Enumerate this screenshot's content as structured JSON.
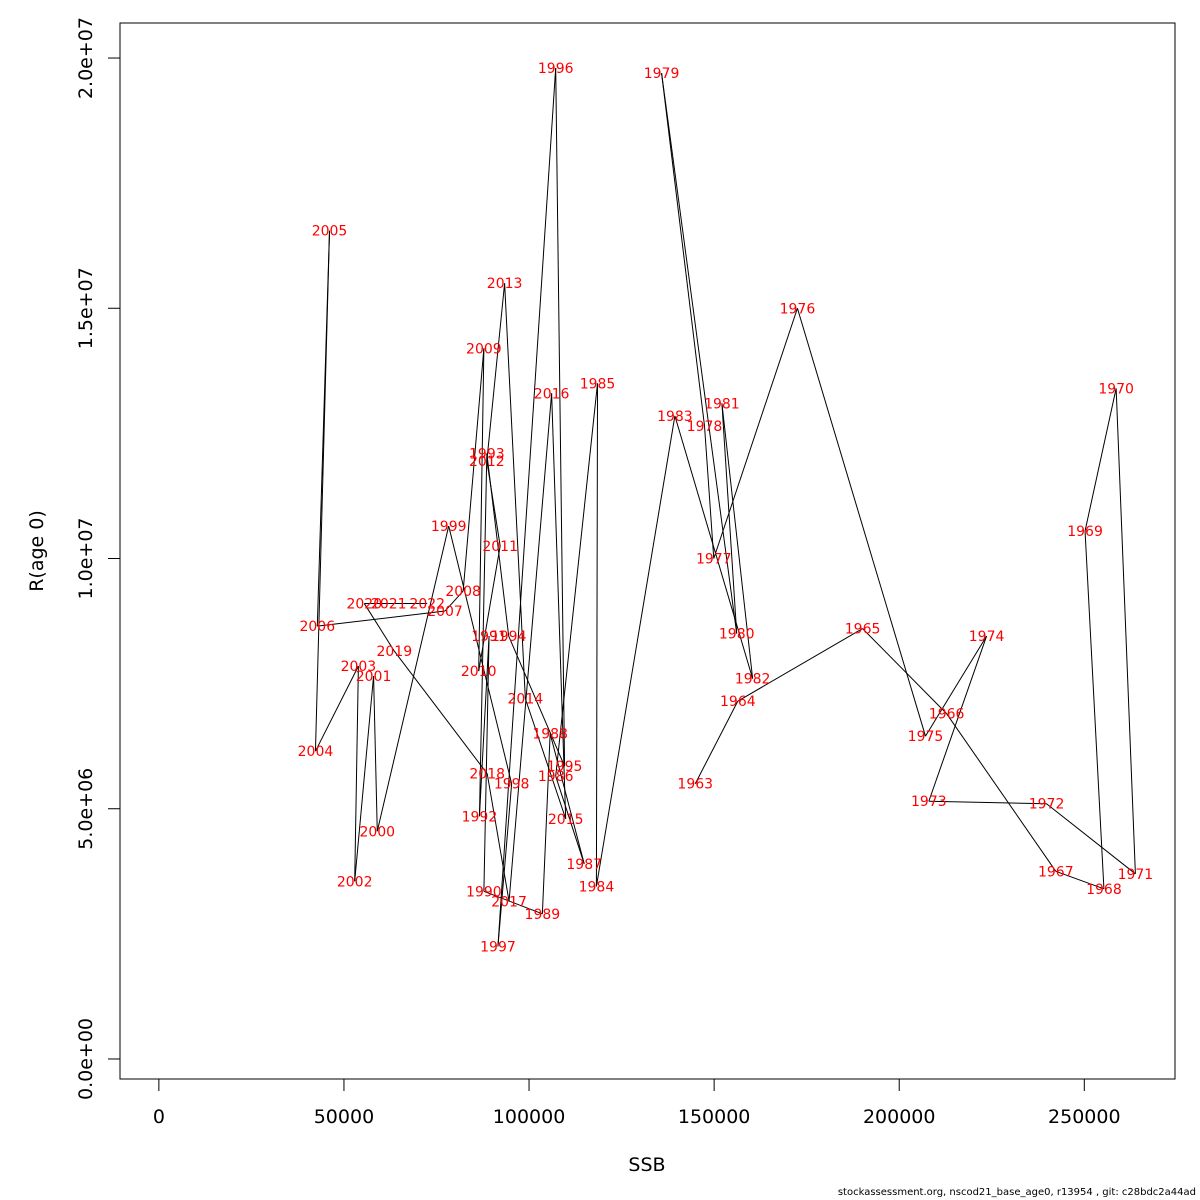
{
  "chart_data": {
    "type": "line",
    "title": "",
    "xlabel": "SSB",
    "ylabel": "R(age 0)",
    "xlim": [
      -10500,
      274500
    ],
    "ylim": [
      -400000,
      20700000
    ],
    "x_ticks": [
      0,
      50000,
      100000,
      150000,
      200000,
      250000
    ],
    "x_tick_labels": [
      "0",
      "50000",
      "100000",
      "150000",
      "200000",
      "250000"
    ],
    "y_ticks": [
      0,
      5000000,
      10000000,
      15000000,
      20000000
    ],
    "y_tick_labels": [
      "0.0e+00",
      "5.0e+06",
      "1.0e+07",
      "1.5e+07",
      "2.0e+07"
    ],
    "grid": false,
    "line_color": "#000000",
    "label_color": "#ff0000",
    "series": [
      {
        "points": [
          {
            "year": "1963",
            "x": 144900,
            "y": 5500000
          },
          {
            "year": "1964",
            "x": 156400,
            "y": 7150000
          },
          {
            "year": "1965",
            "x": 190100,
            "y": 8600000
          },
          {
            "year": "1966",
            "x": 212800,
            "y": 6900000
          },
          {
            "year": "1967",
            "x": 242300,
            "y": 3750000
          },
          {
            "year": "1968",
            "x": 255300,
            "y": 3400000
          },
          {
            "year": "1969",
            "x": 250200,
            "y": 10550000
          },
          {
            "year": "1970",
            "x": 258600,
            "y": 13400000
          },
          {
            "year": "1971",
            "x": 263800,
            "y": 3700000
          },
          {
            "year": "1972",
            "x": 239800,
            "y": 5100000
          },
          {
            "year": "1973",
            "x": 208000,
            "y": 5150000
          },
          {
            "year": "1974",
            "x": 223600,
            "y": 8450000
          },
          {
            "year": "1975",
            "x": 207100,
            "y": 6450000
          },
          {
            "year": "1976",
            "x": 172500,
            "y": 15000000
          },
          {
            "year": "1977",
            "x": 149900,
            "y": 10000000
          },
          {
            "year": "1978",
            "x": 147400,
            "y": 12650000
          },
          {
            "year": "1979",
            "x": 135800,
            "y": 19700000
          },
          {
            "year": "1980",
            "x": 156100,
            "y": 8500000
          },
          {
            "year": "1981",
            "x": 152100,
            "y": 13100000
          },
          {
            "year": "1982",
            "x": 160400,
            "y": 7600000
          },
          {
            "year": "1983",
            "x": 139400,
            "y": 12850000
          },
          {
            "year": "1984",
            "x": 118200,
            "y": 3450000
          },
          {
            "year": "1985",
            "x": 118500,
            "y": 13500000
          },
          {
            "year": "1986",
            "x": 107200,
            "y": 5650000
          },
          {
            "year": "1987",
            "x": 114900,
            "y": 3900000
          },
          {
            "year": "1988",
            "x": 105700,
            "y": 6500000
          },
          {
            "year": "1989",
            "x": 103600,
            "y": 2900000
          },
          {
            "year": "1990",
            "x": 87800,
            "y": 3350000
          },
          {
            "year": "1991",
            "x": 89200,
            "y": 8450000
          },
          {
            "year": "1992",
            "x": 86600,
            "y": 4850000
          },
          {
            "year": "1993",
            "x": 88600,
            "y": 12100000
          },
          {
            "year": "1994",
            "x": 94500,
            "y": 8450000
          },
          {
            "year": "1995",
            "x": 109600,
            "y": 5850000
          },
          {
            "year": "1996",
            "x": 107200,
            "y": 19800000
          },
          {
            "year": "1997",
            "x": 91600,
            "y": 2250000
          },
          {
            "year": "1998",
            "x": 95300,
            "y": 5500000
          },
          {
            "year": "1999",
            "x": 78300,
            "y": 10650000
          },
          {
            "year": "2000",
            "x": 59000,
            "y": 4550000
          },
          {
            "year": "2001",
            "x": 58000,
            "y": 7650000
          },
          {
            "year": "2002",
            "x": 52900,
            "y": 3550000
          },
          {
            "year": "2003",
            "x": 53900,
            "y": 7850000
          },
          {
            "year": "2004",
            "x": 42300,
            "y": 6150000
          },
          {
            "year": "2005",
            "x": 46100,
            "y": 16550000
          },
          {
            "year": "2006",
            "x": 42800,
            "y": 8650000
          },
          {
            "year": "2007",
            "x": 77300,
            "y": 8950000
          },
          {
            "year": "2008",
            "x": 82200,
            "y": 9350000
          },
          {
            "year": "2009",
            "x": 87800,
            "y": 14200000
          },
          {
            "year": "2010",
            "x": 86400,
            "y": 7750000
          },
          {
            "year": "2011",
            "x": 92200,
            "y": 10250000
          },
          {
            "year": "2012",
            "x": 88600,
            "y": 11950000
          },
          {
            "year": "2013",
            "x": 93400,
            "y": 15500000
          },
          {
            "year": "2014",
            "x": 99000,
            "y": 7200000
          },
          {
            "year": "2015",
            "x": 109900,
            "y": 4800000
          },
          {
            "year": "2016",
            "x": 106100,
            "y": 13300000
          },
          {
            "year": "2017",
            "x": 94600,
            "y": 3150000
          },
          {
            "year": "2018",
            "x": 88700,
            "y": 5700000
          },
          {
            "year": "2019",
            "x": 63600,
            "y": 8150000
          },
          {
            "year": "2020",
            "x": 55500,
            "y": 9100000
          },
          {
            "year": "2021",
            "x": 62100,
            "y": 9100000
          },
          {
            "year": "2022",
            "x": 72500,
            "y": 9100000
          }
        ]
      }
    ]
  },
  "footer": {
    "caption": "stockassessment.org, nscod21_base_age0, r13954 , git: c28bdc2a44ad"
  }
}
